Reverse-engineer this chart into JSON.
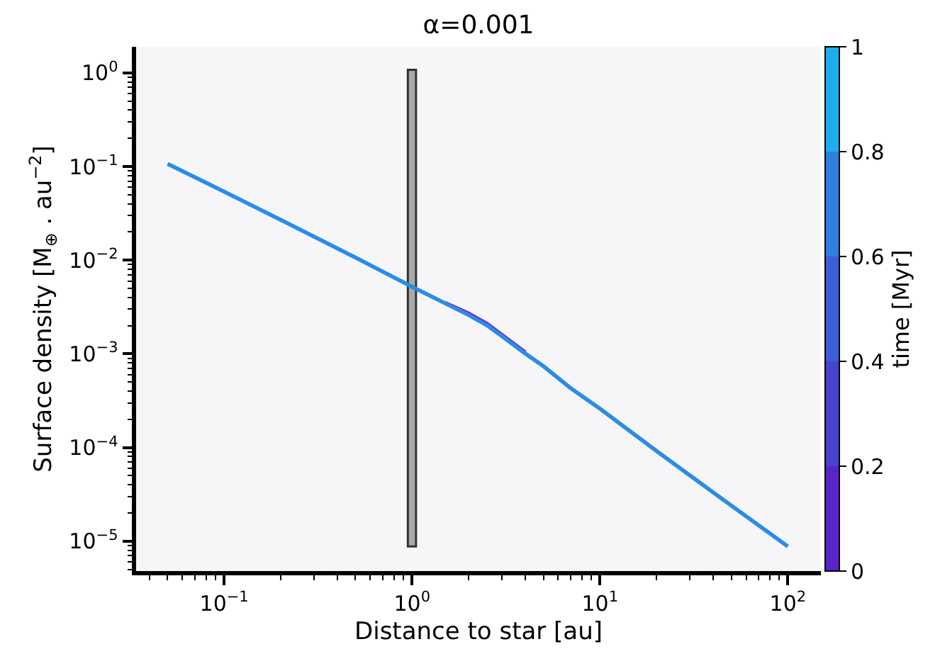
{
  "chart_data": {
    "type": "line",
    "title": "α=0.001",
    "xlabel": "Distance to star [au]",
    "ylabel": "Surface density [M$_{⊕}$ . au$^{−2}$]",
    "clabel": "time [Myr]",
    "log": "xy",
    "xlim": [
      0.034,
      150
    ],
    "ylim": [
      4.8e-06,
      1.9
    ],
    "xticks": [
      {
        "value": 0.1,
        "label": "10$^{−1}$"
      },
      {
        "value": 1,
        "label": "10$^{0}$"
      },
      {
        "value": 10,
        "label": "10$^{1}$"
      },
      {
        "value": 100,
        "label": "10$^{2}$"
      }
    ],
    "yticks": [
      {
        "value": 1e-05,
        "label": "10$^{−5}$"
      },
      {
        "value": 0.0001,
        "label": "10$^{−4}$"
      },
      {
        "value": 0.001,
        "label": "10$^{−3}$"
      },
      {
        "value": 0.01,
        "label": "10$^{−2}$"
      },
      {
        "value": 0.1,
        "label": "10$^{−1}$"
      },
      {
        "value": 1,
        "label": "10$^{0}$"
      }
    ],
    "clim": [
      0,
      1
    ],
    "cticks": [
      0,
      0.2,
      0.4,
      0.6,
      0.8,
      1
    ],
    "series": [
      {
        "type": "bar",
        "x": [
          1
        ],
        "base": [
          8.8e-06
        ],
        "values": [
          1.08
        ],
        "color": "#a9a9a9"
      },
      {
        "color": "#6a2ad0",
        "x": [
          1.5,
          2,
          2.5,
          3,
          4
        ],
        "values": [
          0.0035,
          0.0027,
          0.0021,
          0.0016,
          0.00104
        ]
      },
      {
        "color": "#2b8ce8",
        "x": [
          0.05,
          0.1,
          0.2,
          0.5,
          1,
          2,
          2.5,
          3,
          4,
          5,
          7,
          10,
          20,
          50,
          100
        ],
        "values": [
          0.107,
          0.054,
          0.027,
          0.0107,
          0.0052,
          0.0026,
          0.00202,
          0.00155,
          0.00101,
          0.00074,
          0.00043,
          0.00026,
          9.2e-05,
          2.4e-05,
          8.8e-06
        ]
      }
    ]
  }
}
